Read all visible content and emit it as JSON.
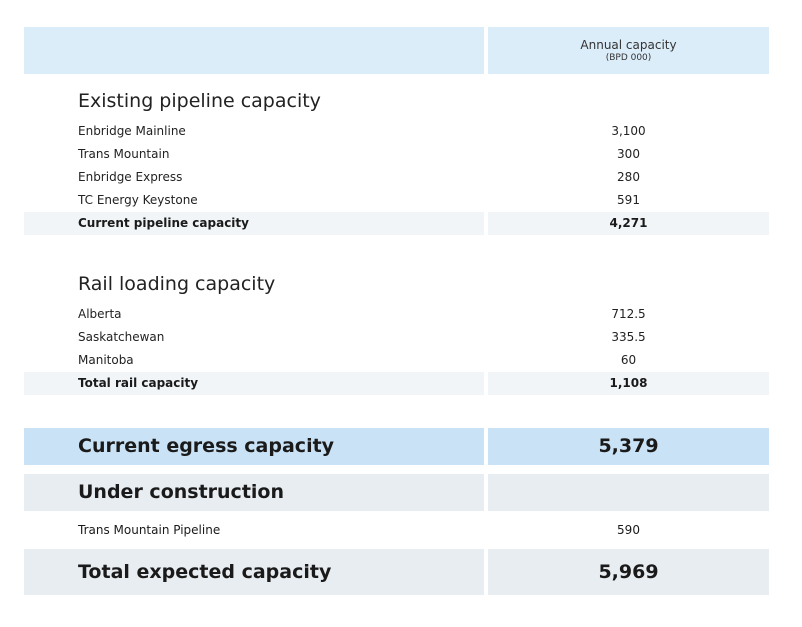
{
  "header": {
    "column_title": "Annual capacity",
    "column_unit": "(BPD 000)"
  },
  "pipeline": {
    "title": "Existing pipeline capacity",
    "items": [
      {
        "name": "Enbridge Mainline",
        "value": "3,100"
      },
      {
        "name": "Trans Mountain",
        "value": "300"
      },
      {
        "name": "Enbridge Express",
        "value": "280"
      },
      {
        "name": "TC Energy Keystone",
        "value": "591"
      }
    ],
    "total_label": "Current pipeline capacity",
    "total_value": "4,271"
  },
  "rail": {
    "title": "Rail loading capacity",
    "items": [
      {
        "name": "Alberta",
        "value": "712.5"
      },
      {
        "name": "Saskatchewan",
        "value": "335.5"
      },
      {
        "name": "Manitoba",
        "value": "60"
      }
    ],
    "total_label": "Total rail capacity",
    "total_value": "1,108"
  },
  "egress": {
    "label": "Current egress capacity",
    "value": "5,379"
  },
  "under_construction": {
    "label": "Under construction",
    "items": [
      {
        "name": "Trans Mountain Pipeline",
        "value": "590"
      }
    ]
  },
  "expected": {
    "label": "Total expected capacity",
    "value": "5,969"
  }
}
